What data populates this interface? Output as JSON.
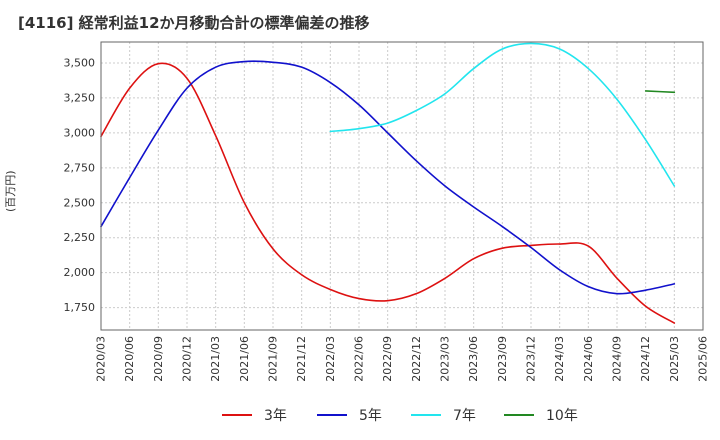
{
  "title": "[4116]  経常利益12か月移動合計の標準偏差の推移",
  "ylabel": "(百万円)",
  "chart_data": {
    "type": "line",
    "title": "[4116]  経常利益12か月移動合計の標準偏差の推移",
    "ylabel": "(百万円)",
    "xlabel": "",
    "categories": [
      "2020/03",
      "2020/06",
      "2020/09",
      "2020/12",
      "2021/03",
      "2021/06",
      "2021/09",
      "2021/12",
      "2022/03",
      "2022/06",
      "2022/09",
      "2022/12",
      "2023/03",
      "2023/06",
      "2023/09",
      "2023/12",
      "2024/03",
      "2024/06",
      "2024/09",
      "2024/12",
      "2025/03",
      "2025/06"
    ],
    "yticks": [
      1750,
      2000,
      2250,
      2500,
      2750,
      3000,
      3250,
      3500
    ],
    "ytick_labels": [
      "1,750",
      "2,000",
      "2,250",
      "2,500",
      "2,750",
      "3,000",
      "3,250",
      "3,500"
    ],
    "ylim": [
      1590,
      3650
    ],
    "grid": true,
    "legend_position": "bottom",
    "series": [
      {
        "name": "3年",
        "color": "#dd1111",
        "values": [
          2975,
          3320,
          3495,
          3390,
          2980,
          2500,
          2170,
          1985,
          1880,
          1815,
          1800,
          1850,
          1960,
          2100,
          2175,
          2195,
          2205,
          2190,
          1960,
          1760,
          1640,
          null
        ]
      },
      {
        "name": "5年",
        "color": "#1111cc",
        "values": [
          2330,
          2680,
          3020,
          3320,
          3470,
          3510,
          3505,
          3470,
          3360,
          3200,
          3000,
          2800,
          2620,
          2470,
          2330,
          2180,
          2020,
          1900,
          1850,
          1875,
          1920,
          null
        ]
      },
      {
        "name": "7年",
        "color": "#22e5ee",
        "values": [
          null,
          null,
          null,
          null,
          null,
          null,
          null,
          null,
          3010,
          3030,
          3070,
          3160,
          3280,
          3460,
          3600,
          3640,
          3600,
          3460,
          3240,
          2950,
          2620,
          null
        ]
      },
      {
        "name": "10年",
        "color": "#228822",
        "values": [
          null,
          null,
          null,
          null,
          null,
          null,
          null,
          null,
          null,
          null,
          null,
          null,
          null,
          null,
          null,
          null,
          null,
          null,
          null,
          3300,
          3290,
          null
        ]
      }
    ]
  }
}
